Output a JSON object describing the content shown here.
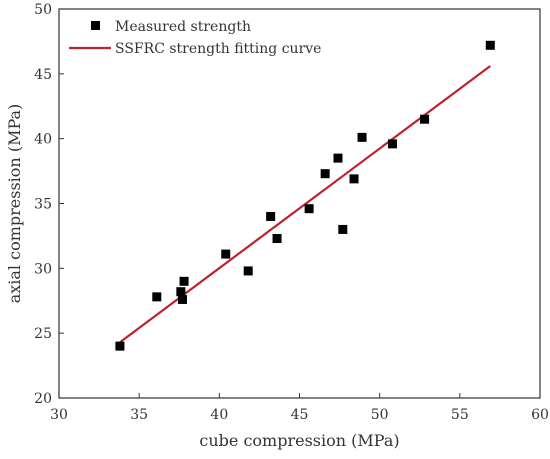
{
  "chart_data": {
    "type": "scatter",
    "xlabel": "cube compression (MPa)",
    "ylabel": "axial compression (MPa)",
    "xlim": [
      30,
      60
    ],
    "ylim": [
      20,
      50
    ],
    "xticks": [
      30,
      35,
      40,
      45,
      50,
      55,
      60
    ],
    "yticks": [
      20,
      25,
      30,
      35,
      40,
      45,
      50
    ],
    "grid": false,
    "legend_position": "top-left",
    "series": [
      {
        "name": "Measured strength",
        "kind": "scatter",
        "marker": "square",
        "color": "#000000",
        "points": [
          {
            "x": 33.8,
            "y": 24.0
          },
          {
            "x": 36.1,
            "y": 27.8
          },
          {
            "x": 37.6,
            "y": 28.2
          },
          {
            "x": 37.7,
            "y": 27.6
          },
          {
            "x": 37.8,
            "y": 29.0
          },
          {
            "x": 40.4,
            "y": 31.1
          },
          {
            "x": 41.8,
            "y": 29.8
          },
          {
            "x": 43.2,
            "y": 34.0
          },
          {
            "x": 43.6,
            "y": 32.3
          },
          {
            "x": 45.6,
            "y": 34.6
          },
          {
            "x": 46.6,
            "y": 37.3
          },
          {
            "x": 47.4,
            "y": 38.5
          },
          {
            "x": 47.7,
            "y": 33.0
          },
          {
            "x": 48.4,
            "y": 36.9
          },
          {
            "x": 48.9,
            "y": 40.1
          },
          {
            "x": 50.8,
            "y": 39.6
          },
          {
            "x": 52.8,
            "y": 41.5
          },
          {
            "x": 56.9,
            "y": 47.2
          }
        ]
      },
      {
        "name": "SSFRC strength fitting curve",
        "kind": "line",
        "color": "#c0202e",
        "points": [
          {
            "x": 33.8,
            "y": 24.3
          },
          {
            "x": 56.9,
            "y": 45.6
          }
        ]
      }
    ]
  }
}
